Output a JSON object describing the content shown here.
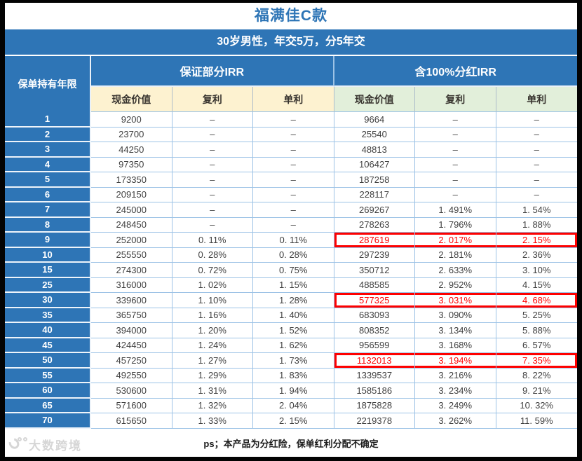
{
  "title": "福满佳C款",
  "subtitle": "30岁男性，年交5万，分5年交",
  "footer": {
    "note": "ps；本产品为分红险，保单红利分配不确定",
    "watermark": "大数跨境"
  },
  "colors": {
    "header_blue": "#2e75b6",
    "grid_light_blue": "#9dc3e6",
    "subheader_cream": "#fdf2d0",
    "subheader_green": "#e2efda",
    "highlight_red": "#fe0000",
    "title_blue": "#2e75b6",
    "data_text": "#404040"
  },
  "chart_data": {
    "type": "table",
    "title": "福满佳C款",
    "subtitle": "30岁男性，年交5万，分5年交",
    "row_header": "保单持有年限",
    "column_groups": [
      {
        "label": "保证部分IRR",
        "span": 3
      },
      {
        "label": "含100%分红IRR",
        "span": 3
      }
    ],
    "columns": [
      "现金价值",
      "复利",
      "单利",
      "现金价值",
      "复利",
      "单利"
    ],
    "rows": [
      {
        "year": "1",
        "cells": [
          "9200",
          "–",
          "–",
          "9664",
          "–",
          "–"
        ],
        "highlight": false
      },
      {
        "year": "2",
        "cells": [
          "23700",
          "–",
          "–",
          "25540",
          "–",
          "–"
        ],
        "highlight": false
      },
      {
        "year": "3",
        "cells": [
          "44250",
          "–",
          "–",
          "48813",
          "–",
          "–"
        ],
        "highlight": false
      },
      {
        "year": "4",
        "cells": [
          "97350",
          "–",
          "–",
          "106427",
          "–",
          "–"
        ],
        "highlight": false
      },
      {
        "year": "5",
        "cells": [
          "173350",
          "–",
          "–",
          "187258",
          "–",
          "–"
        ],
        "highlight": false
      },
      {
        "year": "6",
        "cells": [
          "209150",
          "–",
          "–",
          "228117",
          "–",
          "–"
        ],
        "highlight": false
      },
      {
        "year": "7",
        "cells": [
          "245000",
          "–",
          "–",
          "269267",
          "1. 491%",
          "1. 54%"
        ],
        "highlight": false
      },
      {
        "year": "8",
        "cells": [
          "248450",
          "–",
          "–",
          "278263",
          "1. 796%",
          "1. 88%"
        ],
        "highlight": false
      },
      {
        "year": "9",
        "cells": [
          "252000",
          "0. 11%",
          "0. 11%",
          "287619",
          "2. 017%",
          "2. 15%"
        ],
        "highlight": true
      },
      {
        "year": "10",
        "cells": [
          "255550",
          "0. 28%",
          "0. 28%",
          "297239",
          "2. 181%",
          "2. 36%"
        ],
        "highlight": false
      },
      {
        "year": "15",
        "cells": [
          "274300",
          "0. 72%",
          "0. 75%",
          "350712",
          "2. 633%",
          "3. 10%"
        ],
        "highlight": false
      },
      {
        "year": "25",
        "cells": [
          "316000",
          "1. 02%",
          "1. 15%",
          "488585",
          "2. 952%",
          "4. 15%"
        ],
        "highlight": false
      },
      {
        "year": "30",
        "cells": [
          "339600",
          "1. 10%",
          "1. 28%",
          "577325",
          "3. 031%",
          "4. 68%"
        ],
        "highlight": true
      },
      {
        "year": "35",
        "cells": [
          "365750",
          "1. 16%",
          "1. 40%",
          "683093",
          "3. 090%",
          "5. 25%"
        ],
        "highlight": false
      },
      {
        "year": "40",
        "cells": [
          "394000",
          "1. 20%",
          "1. 52%",
          "808352",
          "3. 134%",
          "5. 88%"
        ],
        "highlight": false
      },
      {
        "year": "45",
        "cells": [
          "424450",
          "1. 24%",
          "1. 62%",
          "956599",
          "3. 168%",
          "6. 57%"
        ],
        "highlight": false
      },
      {
        "year": "50",
        "cells": [
          "457250",
          "1. 27%",
          "1. 73%",
          "1132013",
          "3. 194%",
          "7. 35%"
        ],
        "highlight": true
      },
      {
        "year": "55",
        "cells": [
          "492550",
          "1. 29%",
          "1. 83%",
          "1339537",
          "3. 216%",
          "8. 22%"
        ],
        "highlight": false
      },
      {
        "year": "60",
        "cells": [
          "530600",
          "1. 31%",
          "1. 94%",
          "1585186",
          "3. 234%",
          "9. 21%"
        ],
        "highlight": false
      },
      {
        "year": "65",
        "cells": [
          "571600",
          "1. 32%",
          "2. 04%",
          "1875828",
          "3. 249%",
          "10. 32%"
        ],
        "highlight": false
      },
      {
        "year": "70",
        "cells": [
          "615650",
          "1. 33%",
          "2. 15%",
          "2219378",
          "3. 262%",
          "11. 59%"
        ],
        "highlight": false
      }
    ]
  }
}
